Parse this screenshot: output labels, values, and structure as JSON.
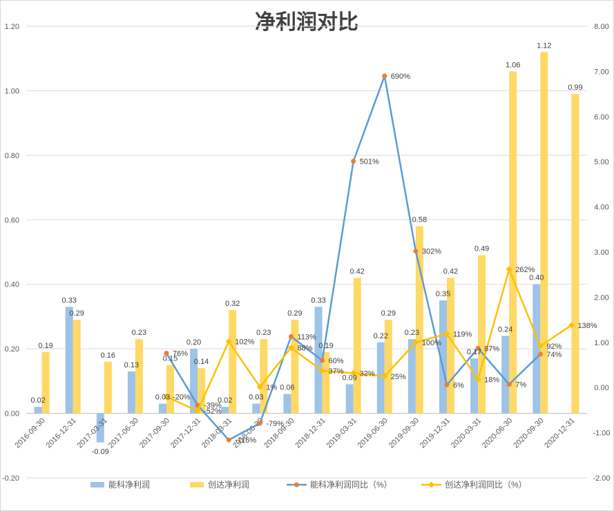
{
  "chart_data": {
    "type": "bar",
    "title": "净利润对比",
    "categories": [
      "2016-09-30",
      "2016-12-31",
      "2017-03-31",
      "2017-06-30",
      "2017-09-30",
      "2017-12-31",
      "2018-03-31",
      "2018-06-30",
      "2018-09-30",
      "2018-12-31",
      "2019-03-31",
      "2019-06-30",
      "2019-09-30",
      "2019-12-31",
      "2020-03-31",
      "2020-06-30",
      "2020-09-30",
      "2020-12-31"
    ],
    "series": [
      {
        "name": "能科净利润",
        "type": "bar",
        "axis": "left",
        "color": "#9DC3E6",
        "values": [
          0.02,
          0.33,
          -0.09,
          0.13,
          0.03,
          0.2,
          0.02,
          0.03,
          0.06,
          0.33,
          0.09,
          0.22,
          0.23,
          0.35,
          0.17,
          0.24,
          0.4,
          null
        ]
      },
      {
        "name": "创达净利润",
        "type": "bar",
        "axis": "left",
        "color": "#FFD966",
        "values": [
          0.19,
          0.29,
          0.16,
          0.23,
          0.15,
          0.14,
          0.32,
          0.23,
          0.29,
          0.19,
          0.42,
          0.29,
          0.58,
          0.42,
          0.49,
          1.06,
          1.12,
          0.99
        ]
      },
      {
        "name": "能科净利润同比（%）",
        "type": "line",
        "axis": "right",
        "color": "#5B9BD5",
        "marker": "circle",
        "marker_color": "#ED7D31",
        "values": [
          null,
          null,
          null,
          null,
          0.76,
          -0.39,
          -1.16,
          -0.79,
          1.13,
          0.6,
          5.01,
          6.9,
          3.02,
          0.06,
          0.87,
          0.07,
          0.74,
          null
        ]
      },
      {
        "name": "创达净利润同比（%）",
        "type": "line",
        "axis": "right",
        "color": "#FFC000",
        "marker": "diamond",
        "marker_color": "#FFC000",
        "values": [
          null,
          null,
          null,
          null,
          -0.2,
          -0.52,
          1.02,
          0.01,
          0.88,
          0.37,
          0.32,
          0.25,
          1.0,
          1.19,
          0.18,
          2.62,
          0.92,
          1.38
        ]
      }
    ],
    "y_left": {
      "ylim": [
        -0.2,
        1.2
      ],
      "ticks": [
        "-0.20",
        "0.00",
        "0.20",
        "0.40",
        "0.60",
        "0.80",
        "1.00",
        "1.20"
      ]
    },
    "y_right": {
      "ylim": [
        -2,
        8
      ],
      "ticks": [
        "-2.00",
        "-1.00",
        "0.00",
        "1.00",
        "2.00",
        "3.00",
        "4.00",
        "5.00",
        "6.00",
        "7.00",
        "8.00"
      ]
    },
    "grid": true,
    "legend": "bottom",
    "data_labels": true
  }
}
